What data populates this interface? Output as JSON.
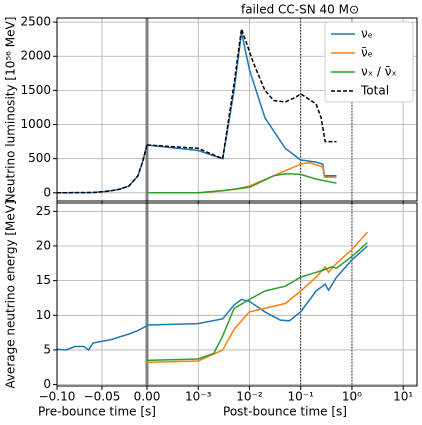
{
  "chart_data": {
    "type": "line",
    "title": "failed CC-SN 40 M⊙",
    "grid": true,
    "legend": "upper right",
    "xaxis": {
      "pre": {
        "label": "Pre-bounce time [s]",
        "xlim": [
          -0.1,
          0
        ],
        "xticks": [
          {
            "value": -0.1,
            "label": "−0.10"
          },
          {
            "value": -0.05,
            "label": "−0.05"
          },
          {
            "value": 0,
            "label": "0.00"
          }
        ]
      },
      "post": {
        "label": "Post-bounce time [s]",
        "log": true,
        "xlim": [
          0.0001,
          18.6
        ],
        "vlines": [
          0.1,
          1
        ],
        "xticks": [
          {
            "value": 0.001,
            "label": "10⁻³"
          },
          {
            "value": 0.01,
            "label": "10⁻²"
          },
          {
            "value": 0.1,
            "label": "10⁻¹"
          },
          {
            "value": 1,
            "label": "10⁰"
          },
          {
            "value": 10,
            "label": "10¹"
          }
        ]
      }
    },
    "panels": [
      {
        "ylabel": "Neutrino luminosity [10⁵⁶ MeV]",
        "ylim": [
          -120,
          2560
        ],
        "yticks": [
          0,
          500,
          1000,
          1500,
          2000,
          2500
        ],
        "series": [
          {
            "name": "νₑ",
            "color": "#1f77b4",
            "pre": {
              "x": [
                -0.1,
                -0.06,
                -0.05,
                -0.04,
                -0.03,
                -0.02,
                -0.01,
                -0.005,
                0
              ],
              "values": [
                0,
                5,
                15,
                30,
                55,
                100,
                250,
                450,
                700
              ]
            },
            "post": {
              "x": [
                0.0001,
                0.001,
                0.003,
                0.005,
                0.007,
                0.01,
                0.02,
                0.05,
                0.1,
                0.2,
                0.27,
                0.29,
                0.5
              ],
              "values": [
                700,
                620,
                500,
                1500,
                2350,
                1800,
                1100,
                650,
                480,
                450,
                420,
                250,
                250
              ]
            }
          },
          {
            "name": "ν̄ₑ",
            "color": "#ff7f0e",
            "post": {
              "x": [
                0.0001,
                0.001,
                0.002,
                0.005,
                0.01,
                0.03,
                0.1,
                0.15,
                0.27,
                0.29,
                0.5
              ],
              "values": [
                0,
                0,
                20,
                50,
                100,
                250,
                420,
                440,
                380,
                230,
                230
              ]
            }
          },
          {
            "name": "νₓ / ν̄ₓ",
            "color": "#2ca02c",
            "post": {
              "x": [
                0.0001,
                0.001,
                0.003,
                0.01,
                0.03,
                0.05,
                0.1,
                0.2,
                0.5
              ],
              "values": [
                0,
                0,
                30,
                80,
                250,
                280,
                270,
                200,
                140
              ]
            }
          },
          {
            "name": "Total",
            "color": "#000000",
            "dash": true,
            "pre": {
              "x": [
                -0.1,
                -0.06,
                -0.05,
                -0.04,
                -0.03,
                -0.02,
                -0.01,
                -0.005,
                0
              ],
              "values": [
                0,
                5,
                15,
                30,
                55,
                100,
                250,
                450,
                700
              ]
            },
            "post": {
              "x": [
                0.0001,
                0.001,
                0.003,
                0.005,
                0.007,
                0.012,
                0.02,
                0.03,
                0.05,
                0.08,
                0.1,
                0.2,
                0.25,
                0.3,
                0.5
              ],
              "values": [
                700,
                650,
                500,
                1600,
                2400,
                1900,
                1500,
                1350,
                1330,
                1400,
                1450,
                1300,
                1100,
                750,
                750
              ]
            }
          }
        ]
      },
      {
        "ylabel": "Average neutrino energy [MeV]",
        "ylim": [
          -0.2,
          26.2
        ],
        "yticks": [
          0,
          5,
          10,
          15,
          20,
          25
        ],
        "series": [
          {
            "name": "νₑ",
            "color": "#1f77b4",
            "pre": {
              "x": [
                -0.1,
                -0.09,
                -0.08,
                -0.07,
                -0.065,
                -0.06,
                -0.04,
                -0.02,
                -0.01,
                0
              ],
              "values": [
                5.1,
                5.0,
                5.5,
                5.5,
                5.0,
                6.0,
                6.5,
                7.3,
                7.8,
                8.5
              ]
            },
            "post": {
              "x": [
                0.0001,
                0.001,
                0.003,
                0.005,
                0.007,
                0.01,
                0.02,
                0.04,
                0.06,
                0.1,
                0.2,
                0.3,
                0.35,
                0.5,
                1,
                2
              ],
              "values": [
                8.6,
                8.8,
                9.5,
                11.5,
                12.3,
                12.0,
                10.5,
                9.3,
                9.2,
                10.5,
                13.5,
                14.5,
                13.6,
                15.5,
                18,
                20
              ]
            }
          },
          {
            "name": "ν̄ₑ",
            "color": "#ff7f0e",
            "post": {
              "x": [
                0.0001,
                0.001,
                0.003,
                0.005,
                0.01,
                0.02,
                0.05,
                0.1,
                0.2,
                0.3,
                0.35,
                0.5,
                1,
                2
              ],
              "values": [
                3.2,
                3.4,
                5,
                8,
                10.5,
                11,
                11.7,
                13.5,
                15.5,
                17,
                16.2,
                17.5,
                19.5,
                22
              ]
            }
          },
          {
            "name": "νₓ / ν̄ₓ",
            "color": "#2ca02c",
            "post": {
              "x": [
                0.0001,
                0.001,
                0.002,
                0.003,
                0.005,
                0.01,
                0.02,
                0.05,
                0.1,
                0.2,
                0.3,
                0.4,
                0.5,
                1,
                2
              ],
              "values": [
                3.5,
                3.7,
                4.5,
                7,
                11,
                12.3,
                13.5,
                14.2,
                15.5,
                16.2,
                16.6,
                17,
                16.8,
                18.5,
                20.5
              ]
            }
          }
        ]
      }
    ]
  }
}
